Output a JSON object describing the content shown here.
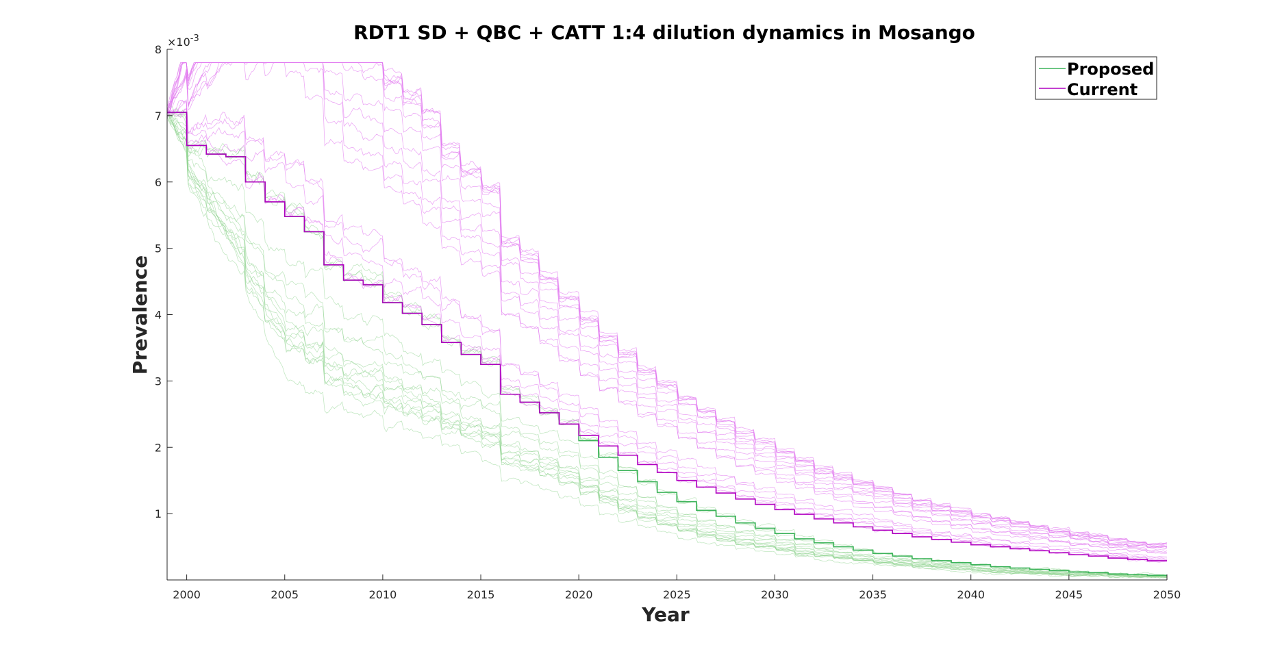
{
  "chart_data": {
    "type": "line",
    "title": "RDT1 SD + QBC + CATT 1:4 dilution dynamics in Mosango",
    "xlabel": "Year",
    "ylabel": "Prevalence",
    "y_exponent_label": "×10",
    "y_exponent_power": "-3",
    "xlim": [
      1999,
      2050
    ],
    "ylim": [
      0,
      8
    ],
    "x_ticks": [
      "2000",
      "2005",
      "2010",
      "2015",
      "2020",
      "2025",
      "2030",
      "2035",
      "2040",
      "2045",
      "2050"
    ],
    "y_ticks": [
      "1",
      "2",
      "3",
      "4",
      "5",
      "6",
      "7",
      "8"
    ],
    "grid": false,
    "legend_position": "top-right",
    "colors": {
      "proposed": "#3cb35a",
      "current": "#b000c0",
      "proposed_realizations": "#8fd48f",
      "current_realizations": "#e070ee"
    },
    "series": [
      {
        "name": "Proposed",
        "step_start": 2000,
        "values": [
          7.05,
          6.55,
          6.42,
          6.38,
          6.0,
          5.7,
          5.48,
          5.25,
          4.75,
          4.52,
          4.45,
          4.18,
          4.02,
          3.85,
          3.58,
          3.4,
          3.25,
          2.8,
          2.68,
          2.52,
          2.35,
          2.1,
          1.85,
          1.65,
          1.48,
          1.32,
          1.18,
          1.05,
          0.96,
          0.86,
          0.78,
          0.7,
          0.62,
          0.56,
          0.5,
          0.45,
          0.4,
          0.36,
          0.32,
          0.29,
          0.26,
          0.23,
          0.2,
          0.18,
          0.16,
          0.14,
          0.12,
          0.11,
          0.09,
          0.08,
          0.07
        ]
      },
      {
        "name": "Current",
        "step_start": 2000,
        "values": [
          7.05,
          6.55,
          6.42,
          6.38,
          6.0,
          5.7,
          5.48,
          5.25,
          4.75,
          4.52,
          4.45,
          4.18,
          4.02,
          3.85,
          3.58,
          3.4,
          3.25,
          2.8,
          2.68,
          2.52,
          2.35,
          2.18,
          2.02,
          1.88,
          1.74,
          1.62,
          1.5,
          1.4,
          1.31,
          1.22,
          1.14,
          1.06,
          0.99,
          0.92,
          0.86,
          0.8,
          0.75,
          0.7,
          0.65,
          0.61,
          0.57,
          0.53,
          0.5,
          0.47,
          0.44,
          0.41,
          0.38,
          0.36,
          0.33,
          0.31,
          0.29
        ]
      }
    ]
  },
  "legend": {
    "items": [
      {
        "label": "Proposed",
        "color": "#3cb35a"
      },
      {
        "label": "Current",
        "color": "#b000c0"
      }
    ]
  }
}
